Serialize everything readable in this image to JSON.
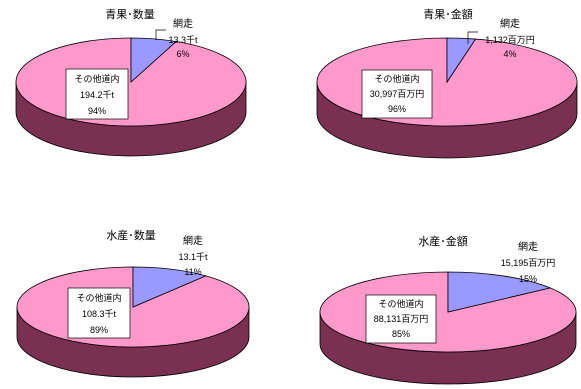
{
  "colors": {
    "main_top": "#ff99cc",
    "main_side": "#7a3050",
    "slice_top": "#9999ff",
    "slice_side": "#333399",
    "outline": "#000000"
  },
  "chart_data": [
    {
      "type": "pie",
      "title": "青果･数量",
      "slices": [
        {
          "name": "網走",
          "value_text": "13.3千t",
          "percent_text": "6%",
          "value": 13.3,
          "percent": 6
        },
        {
          "name": "その他道内",
          "value_text": "194.2千t",
          "percent_text": "94%",
          "value": 194.2,
          "percent": 94
        }
      ]
    },
    {
      "type": "pie",
      "title": "青果･金額",
      "slices": [
        {
          "name": "網走",
          "value_text": "1,132百万円",
          "percent_text": "4%",
          "value": 1132,
          "percent": 4
        },
        {
          "name": "その他道内",
          "value_text": "30,997百万円",
          "percent_text": "96%",
          "value": 30997,
          "percent": 96
        }
      ]
    },
    {
      "type": "pie",
      "title": "水産･数量",
      "slices": [
        {
          "name": "網走",
          "value_text": "13.1千t",
          "percent_text": "11%",
          "value": 13.1,
          "percent": 11
        },
        {
          "name": "その他道内",
          "value_text": "108.3千t",
          "percent_text": "89%",
          "value": 108.3,
          "percent": 89
        }
      ]
    },
    {
      "type": "pie",
      "title": "水産･金額",
      "slices": [
        {
          "name": "網走",
          "value_text": "15,195百万円",
          "percent_text": "15%",
          "value": 15195,
          "percent": 15
        },
        {
          "name": "その他道内",
          "value_text": "88,131百万円",
          "percent_text": "85%",
          "value": 88131,
          "percent": 85
        }
      ]
    }
  ]
}
